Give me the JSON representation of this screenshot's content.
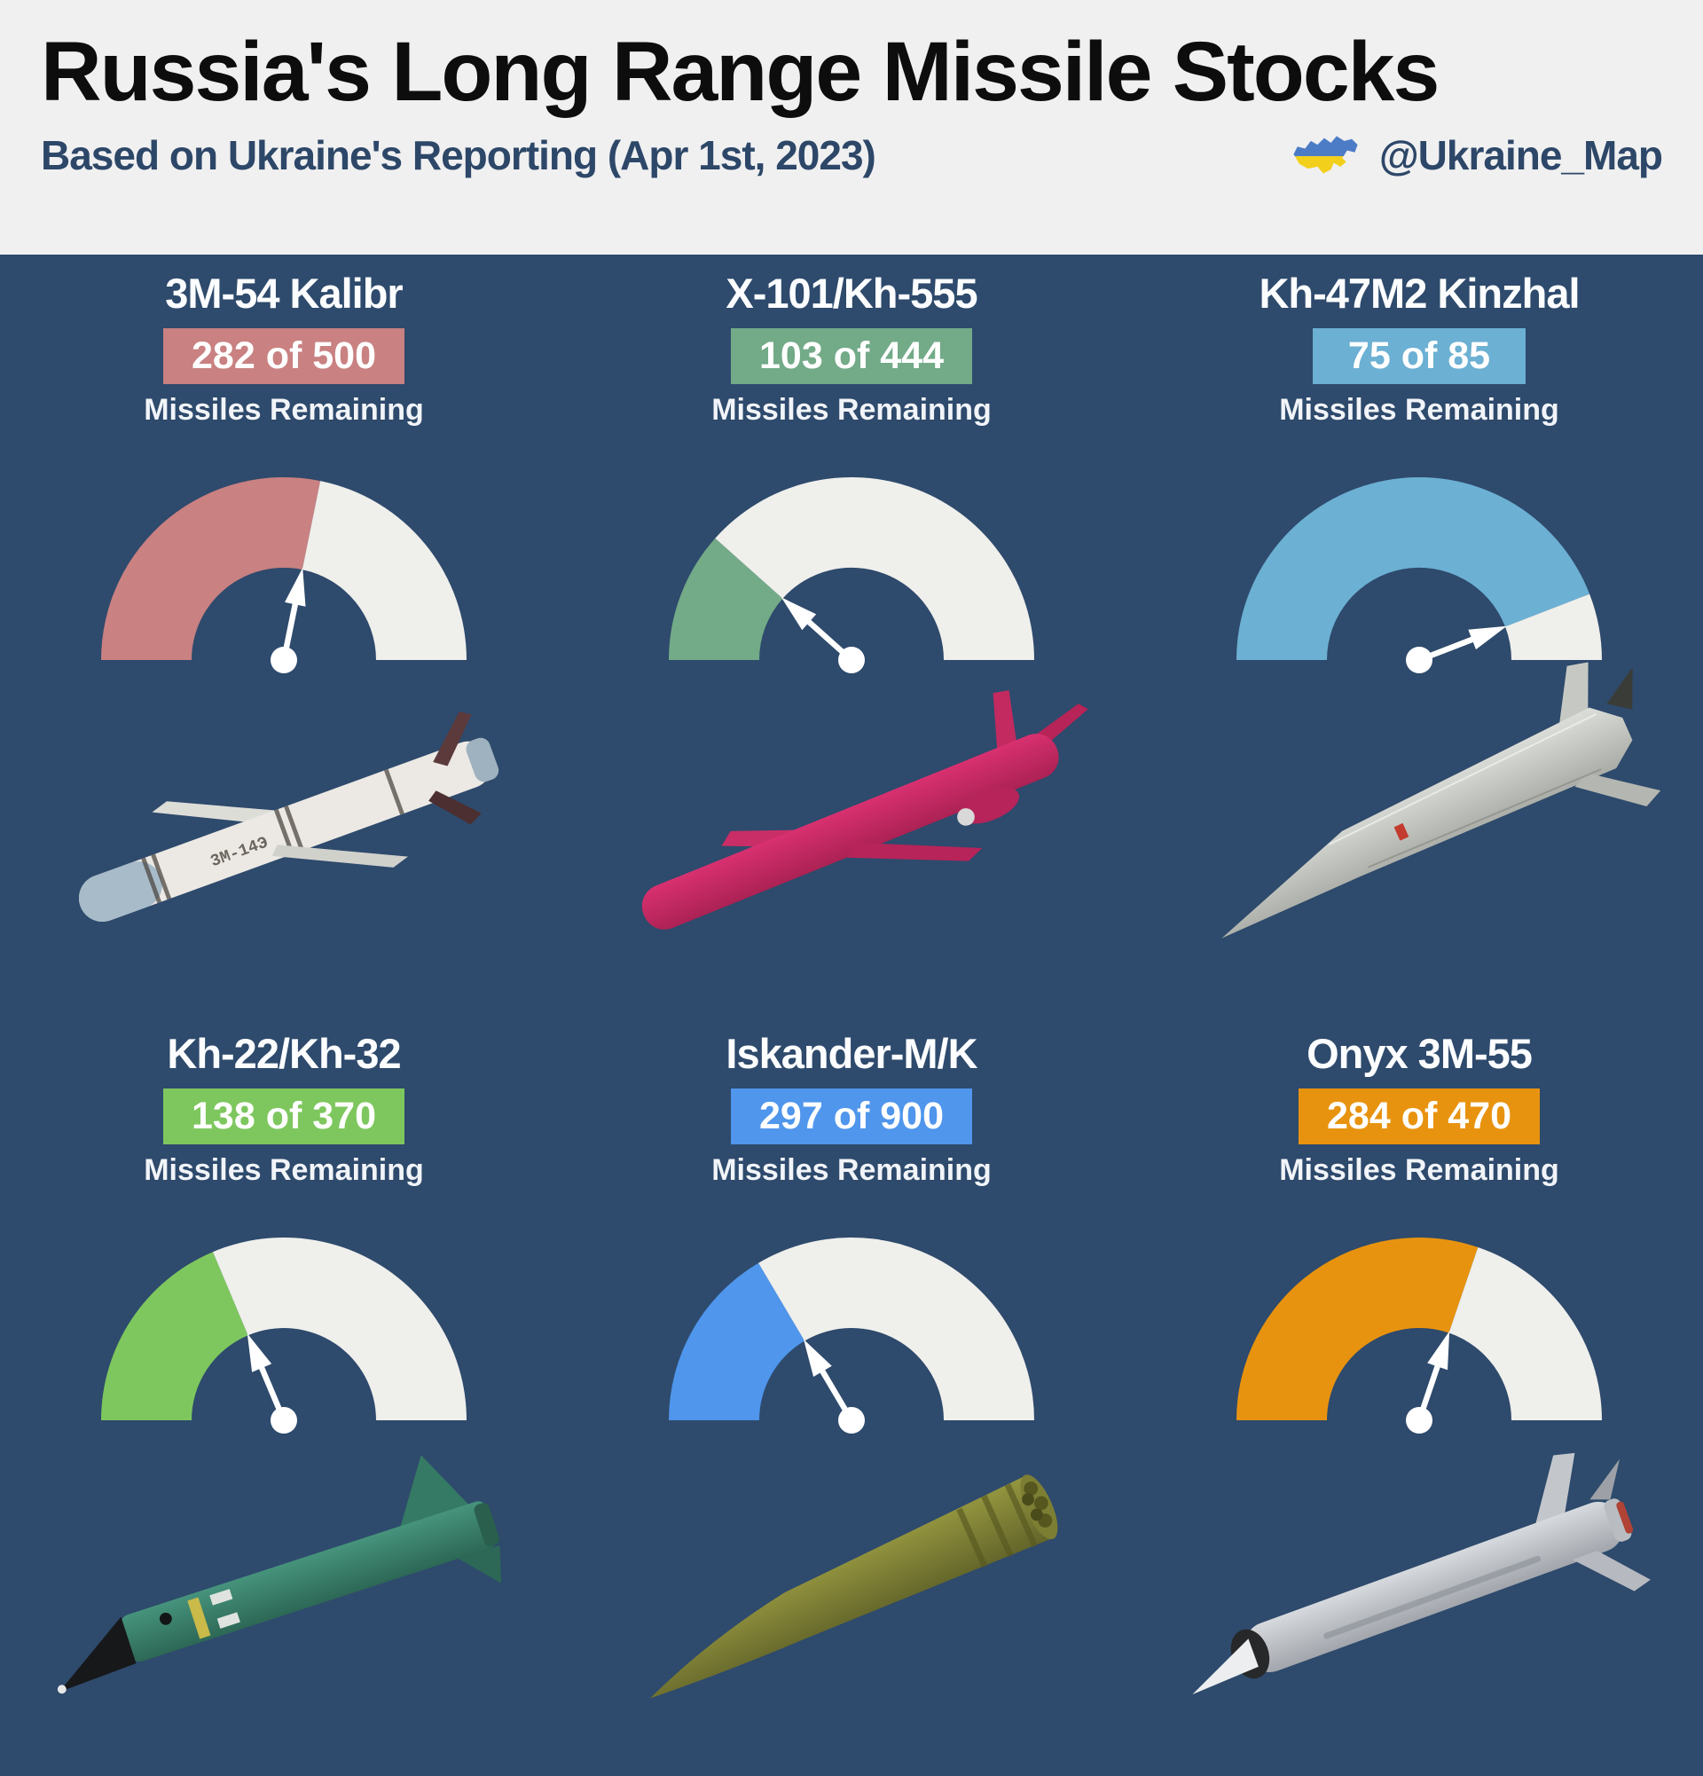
{
  "header": {
    "title": "Russia's Long Range Missile Stocks",
    "subtitle": "Based on Ukraine's Reporting (Apr 1st, 2023)",
    "handle": "@Ukraine_Map",
    "flag_icon": "ukraine-map-icon",
    "flag_blue": "#4d7cc7",
    "flag_yellow": "#f2cf1b"
  },
  "colors": {
    "background": "#2e4a6c",
    "header_background": "#f0f0f1",
    "title_text": "#0d0d0d",
    "subtitle_text": "#2d4768",
    "card_text": "#ffffff",
    "gauge_empty": "#efefec",
    "needle": "#ffffff"
  },
  "cards": [
    {
      "name": "3M-54 Kalibr",
      "stock_label": "282 of 500",
      "remaining": 282,
      "total": 500,
      "caption": "Missiles Remaining",
      "color": "#c98181",
      "missile": "kalibr",
      "marking": "3M-14Э"
    },
    {
      "name": "X-101/Kh-555",
      "stock_label": "103 of 444",
      "remaining": 103,
      "total": 444,
      "caption": "Missiles Remaining",
      "color": "#73aa88",
      "missile": "x101",
      "marking": ""
    },
    {
      "name": "Kh-47M2 Kinzhal",
      "stock_label": "75 of 85",
      "remaining": 75,
      "total": 85,
      "caption": "Missiles Remaining",
      "color": "#6cb0d3",
      "missile": "kinzhal",
      "marking": ""
    },
    {
      "name": "Kh-22/Kh-32",
      "stock_label": "138 of 370",
      "remaining": 138,
      "total": 370,
      "caption": "Missiles Remaining",
      "color": "#7ec75f",
      "missile": "kh22",
      "marking": ""
    },
    {
      "name": "Iskander-M/K",
      "stock_label": "297 of 900",
      "remaining": 297,
      "total": 900,
      "caption": "Missiles Remaining",
      "color": "#4f96ec",
      "missile": "iskander",
      "marking": ""
    },
    {
      "name": "Onyx 3M-55",
      "stock_label": "284 of 470",
      "remaining": 284,
      "total": 470,
      "caption": "Missiles Remaining",
      "color": "#e8930f",
      "missile": "onyx",
      "marking": ""
    }
  ],
  "chart_data": [
    {
      "type": "gauge",
      "title": "3M-54 Kalibr",
      "label": "282 of 500",
      "remaining": 282,
      "total": 500,
      "percent_remaining": 56.4,
      "color": "#c98181",
      "range": [
        0,
        500
      ]
    },
    {
      "type": "gauge",
      "title": "X-101/Kh-555",
      "label": "103 of 444",
      "remaining": 103,
      "total": 444,
      "percent_remaining": 23.2,
      "color": "#73aa88",
      "range": [
        0,
        444
      ]
    },
    {
      "type": "gauge",
      "title": "Kh-47M2 Kinzhal",
      "label": "75 of 85",
      "remaining": 75,
      "total": 85,
      "percent_remaining": 88.2,
      "color": "#6cb0d3",
      "range": [
        0,
        85
      ]
    },
    {
      "type": "gauge",
      "title": "Kh-22/Kh-32",
      "label": "138 of 370",
      "remaining": 138,
      "total": 370,
      "percent_remaining": 37.3,
      "color": "#7ec75f",
      "range": [
        0,
        370
      ]
    },
    {
      "type": "gauge",
      "title": "Iskander-M/K",
      "label": "297 of 900",
      "remaining": 297,
      "total": 900,
      "percent_remaining": 33.0,
      "color": "#4f96ec",
      "range": [
        0,
        900
      ]
    },
    {
      "type": "gauge",
      "title": "Onyx 3M-55",
      "label": "284 of 470",
      "remaining": 284,
      "total": 470,
      "percent_remaining": 60.4,
      "color": "#e8930f",
      "range": [
        0,
        470
      ]
    }
  ]
}
